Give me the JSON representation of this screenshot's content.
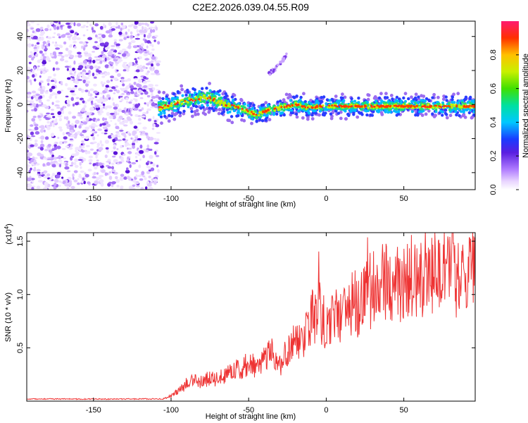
{
  "page_title": "C2E2.2026.039.04.55.R09",
  "chart_data": [
    {
      "type": "heatmap",
      "title": "C2E2.2026.039.04.55.R09",
      "xlabel": "Height of straight line (km)",
      "ylabel": "Frequency (Hz)",
      "xlim": [
        -193,
        96
      ],
      "ylim": [
        -50,
        49
      ],
      "x_ticks": [
        -150,
        -100,
        -50,
        0,
        50
      ],
      "x_tick_labels": [
        "-150",
        "-100",
        "-50",
        "0",
        "50"
      ],
      "y_ticks": [
        -40,
        -20,
        0,
        20,
        40
      ],
      "y_tick_labels": [
        "-40",
        "-20",
        "0",
        "20",
        "40"
      ],
      "noise_region_x": [
        -193,
        -108
      ],
      "signal_trace": {
        "x": [
          -108,
          -100,
          -95,
          -90,
          -85,
          -80,
          -75,
          -70,
          -65,
          -60,
          -55,
          -50,
          -45,
          -40,
          -35,
          -30,
          -25,
          -20,
          -15,
          -10,
          -5,
          0,
          5,
          10,
          20,
          30,
          40,
          50,
          60,
          70,
          80,
          90,
          96
        ],
        "y": [
          -2,
          0,
          1,
          2,
          3,
          4,
          4,
          2,
          0,
          -1,
          -2,
          -4,
          -6,
          -4,
          -3,
          -2,
          -1,
          0,
          -1,
          -2,
          -1,
          -1,
          -1,
          -1,
          -1,
          -1,
          -1,
          -1,
          -1,
          -1,
          -1,
          -1,
          -1
        ]
      },
      "secondary_trace": {
        "x": [
          -37,
          -34,
          -31,
          -28,
          -25
        ],
        "y": [
          18,
          20,
          23,
          26,
          30
        ]
      },
      "colorbar": {
        "label": "Normalized spectral amplitude",
        "range": [
          0,
          1
        ],
        "ticks": [
          0.0,
          0.2,
          0.4,
          0.6,
          0.8
        ],
        "tick_labels": [
          "0.0",
          "0.2",
          "0.4",
          "0.6",
          "0.8"
        ]
      }
    },
    {
      "type": "line",
      "xlabel": "Height of straight line (km)",
      "ylabel": "SNR (10 * v/v)",
      "y_multiplier": "(x10",
      "y_multiplier_exp": "4",
      "y_multiplier_close": ")",
      "xlim": [
        -193,
        96
      ],
      "ylim": [
        0,
        1.58
      ],
      "x_ticks": [
        -150,
        -100,
        -50,
        0,
        50
      ],
      "x_tick_labels": [
        "-150",
        "-100",
        "-50",
        "0",
        "50"
      ],
      "y_ticks": [
        0.5,
        1.0,
        1.5
      ],
      "y_tick_labels": [
        "0.5",
        "1.0",
        "1.5"
      ],
      "color": "#ee3333",
      "series": [
        {
          "name": "SNR",
          "x": [
            -193,
            -180,
            -160,
            -140,
            -120,
            -105,
            -100,
            -95,
            -90,
            -85,
            -80,
            -75,
            -70,
            -65,
            -60,
            -55,
            -50,
            -45,
            -40,
            -35,
            -30,
            -25,
            -20,
            -15,
            -12,
            -10,
            -5,
            0,
            5,
            10,
            15,
            20,
            25,
            30,
            35,
            40,
            45,
            50,
            55,
            60,
            65,
            70,
            75,
            80,
            85,
            90,
            96
          ],
          "values": [
            0.02,
            0.02,
            0.02,
            0.02,
            0.02,
            0.02,
            0.05,
            0.1,
            0.15,
            0.2,
            0.18,
            0.22,
            0.2,
            0.25,
            0.28,
            0.3,
            0.35,
            0.32,
            0.4,
            0.45,
            0.35,
            0.5,
            0.55,
            0.6,
            0.65,
            0.8,
            0.85,
            0.7,
            0.85,
            0.75,
            0.95,
            0.9,
            1.0,
            1.05,
            1.1,
            1.12,
            1.08,
            1.15,
            1.2,
            1.15,
            1.25,
            1.18,
            1.22,
            1.2,
            1.15,
            1.2,
            1.18
          ]
        }
      ]
    }
  ]
}
